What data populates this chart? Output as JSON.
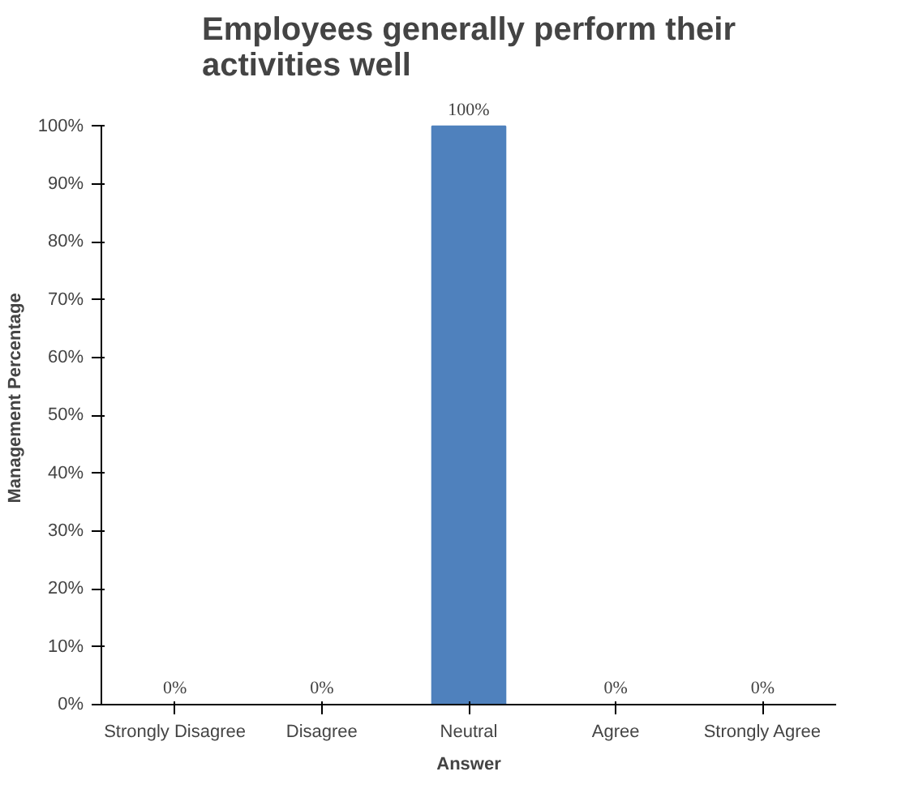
{
  "chart_data": {
    "type": "bar",
    "title": "Employees generally perform their activities well",
    "xlabel": "Answer",
    "ylabel": "Management Percentage",
    "categories": [
      "Strongly Disagree",
      "Disagree",
      "Neutral",
      "Agree",
      "Strongly Agree"
    ],
    "values": [
      0,
      0,
      100,
      0,
      0
    ],
    "color": "#4f81bd",
    "value_labels": [
      "0%",
      "0%",
      "100%",
      "0%",
      "0%"
    ],
    "ylim": [
      0,
      100
    ],
    "yticks": [
      {
        "value": 0,
        "label": "0%"
      },
      {
        "value": 10,
        "label": "10%"
      },
      {
        "value": 20,
        "label": "20%"
      },
      {
        "value": 30,
        "label": "30%"
      },
      {
        "value": 40,
        "label": "40%"
      },
      {
        "value": 50,
        "label": "50%"
      },
      {
        "value": 60,
        "label": "60%"
      },
      {
        "value": 70,
        "label": "70%"
      },
      {
        "value": 80,
        "label": "80%"
      },
      {
        "value": 90,
        "label": "90%"
      },
      {
        "value": 100,
        "label": "100%"
      }
    ],
    "grid": false
  }
}
